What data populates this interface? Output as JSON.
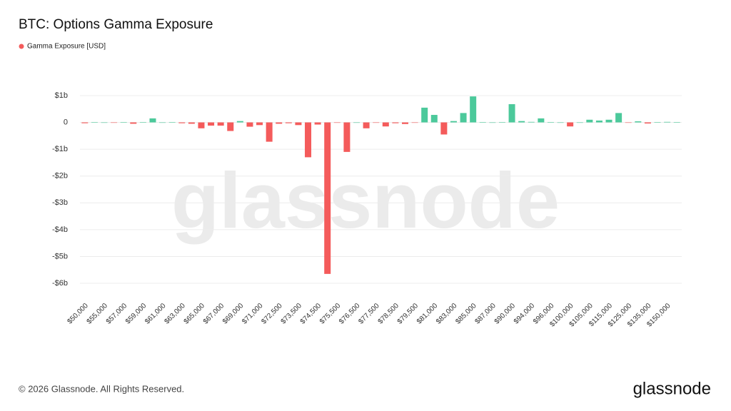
{
  "chart_data": {
    "type": "bar",
    "title": "BTC: Options Gamma Exposure",
    "watermark": "glassnode",
    "categories": [
      "$50,000",
      null,
      "$55,000",
      null,
      "$57,000",
      null,
      "$59,000",
      null,
      "$61,000",
      null,
      "$63,000",
      null,
      "$65,000",
      null,
      "$67,000",
      null,
      "$69,000",
      null,
      "$71,000",
      null,
      "$72,500",
      null,
      "$73,500",
      null,
      "$74,500",
      null,
      "$75,500",
      null,
      "$76,500",
      null,
      "$77,500",
      null,
      "$78,500",
      null,
      "$79,500",
      null,
      "$81,000",
      null,
      "$83,000",
      null,
      "$85,000",
      null,
      "$87,000",
      null,
      "$90,000",
      null,
      "$94,000",
      null,
      "$96,000",
      null,
      "$100,000",
      null,
      "$105,000",
      null,
      "$115,000",
      null,
      "$125,000",
      null,
      "$135,000",
      null,
      "$150,000",
      null
    ],
    "series": [
      {
        "name": "Gamma Exposure [USD]",
        "color": "#f45b5b",
        "positive_color": "#4cc99b",
        "values": [
          -0.03,
          0.01,
          0,
          -0.01,
          0.01,
          -0.05,
          0.01,
          0.15,
          0,
          0.01,
          -0.03,
          -0.05,
          -0.22,
          -0.12,
          -0.12,
          -0.32,
          0.05,
          -0.16,
          -0.1,
          -0.72,
          -0.05,
          -0.03,
          -0.1,
          -1.3,
          -0.08,
          -5.65,
          -0.01,
          -1.1,
          0,
          -0.22,
          -0.01,
          -0.15,
          -0.03,
          -0.06,
          -0.01,
          0.55,
          0.28,
          -0.45,
          0.05,
          0.35,
          0.97,
          0.01,
          0,
          0.01,
          0.68,
          0.05,
          0.02,
          0.15,
          0.01,
          0,
          -0.15,
          0,
          0.1,
          0.07,
          0.1,
          0.35,
          -0.01,
          0.04,
          -0.04,
          0.01,
          0.02,
          0.01
        ]
      }
    ],
    "ylim": [
      -6.3,
      1.3
    ],
    "yticks": [
      {
        "value": 1,
        "label": "$1b"
      },
      0,
      {
        "value": -1,
        "label": "-$1b"
      },
      {
        "value": -2,
        "label": "-$2b"
      },
      {
        "value": -3,
        "label": "-$3b"
      },
      {
        "value": -4,
        "label": "-$4b"
      },
      {
        "value": -5,
        "label": "-$5b"
      },
      {
        "value": -6,
        "label": "-$6b"
      }
    ],
    "grid": true
  },
  "footer": {
    "copyright": "© 2026 Glassnode. All Rights Reserved.",
    "logo": "glassnode"
  }
}
